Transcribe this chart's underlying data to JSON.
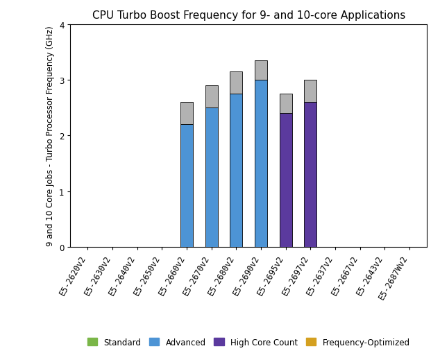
{
  "title": "CPU Turbo Boost Frequency for 9- and 10-core Applications",
  "ylabel": "9 and 10 Core Jobs - Turbo Processor Frequency (GHz)",
  "ylim": [
    0,
    4
  ],
  "yticks": [
    0,
    1,
    2,
    3,
    4
  ],
  "categories": [
    "E5-2620v2",
    "E5-2630v2",
    "E5-2640v2",
    "E5-2650v2",
    "E5-2660v2",
    "E5-2670v2",
    "E5-2680v2",
    "E5-2690v2",
    "E5-2695v2",
    "E5-2697v2",
    "E5-2637v2",
    "E5-2667v2",
    "E5-2643v2",
    "E5-2687Wv2"
  ],
  "bar_bottom": [
    0,
    0,
    0,
    0,
    2.2,
    2.5,
    2.75,
    3.0,
    2.4,
    2.6,
    0,
    0,
    0,
    0
  ],
  "bar_top": [
    0,
    0,
    0,
    0,
    0.4,
    0.4,
    0.4,
    0.35,
    0.35,
    0.4,
    0,
    0,
    0,
    0
  ],
  "bar_bottom_color": [
    "#4d94d5",
    "#4d94d5",
    "#4d94d5",
    "#4d94d5",
    "#4d94d5",
    "#4d94d5",
    "#4d94d5",
    "#4d94d5",
    "#5b3a9e",
    "#5b3a9e",
    "#4d94d5",
    "#4d94d5",
    "#4d94d5",
    "#4d94d5"
  ],
  "bar_top_color": "#b2b2b2",
  "legend_entries": [
    "Standard",
    "Advanced",
    "High Core Count",
    "Frequency-Optimized"
  ],
  "legend_colors": [
    "#7ab648",
    "#4d94d5",
    "#5b3a9e",
    "#d4a020"
  ],
  "background_color": "#ffffff",
  "title_fontsize": 11,
  "axis_label_fontsize": 8.5,
  "tick_fontsize": 8.5,
  "bar_width": 0.5
}
